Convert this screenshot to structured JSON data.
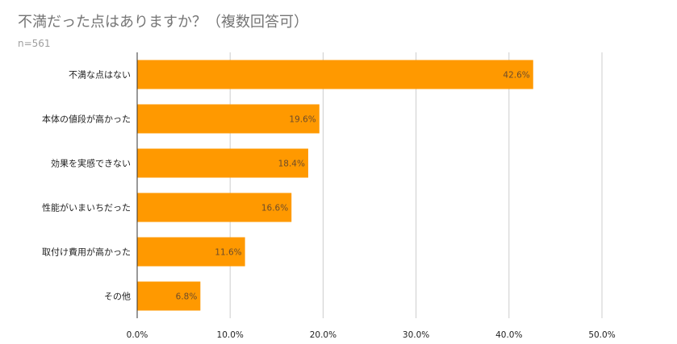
{
  "title": "不満だった点はありますか？（複数回答可）",
  "subtitle": "n=561",
  "colors": {
    "bar": "#ff9900",
    "grid": "#cccccc",
    "title": "#757575"
  },
  "chart_data": {
    "type": "bar",
    "orientation": "horizontal",
    "categories": [
      "不満な点はない",
      "本体の値段が高かった",
      "効果を実感できない",
      "性能がいまいちだった",
      "取付け費用が高かった",
      "その他"
    ],
    "values": [
      42.6,
      19.6,
      18.4,
      16.6,
      11.6,
      6.8
    ],
    "value_labels": [
      "42.6%",
      "19.6%",
      "18.4%",
      "16.6%",
      "11.6%",
      "6.8%"
    ],
    "xlim": [
      0,
      50
    ],
    "xticks": [
      0,
      10,
      20,
      30,
      40,
      50
    ],
    "xtick_labels": [
      "0.0%",
      "10.0%",
      "20.0%",
      "30.0%",
      "40.0%",
      "50.0%"
    ],
    "grid": true,
    "legend": "none",
    "xlabel": "",
    "ylabel": ""
  }
}
